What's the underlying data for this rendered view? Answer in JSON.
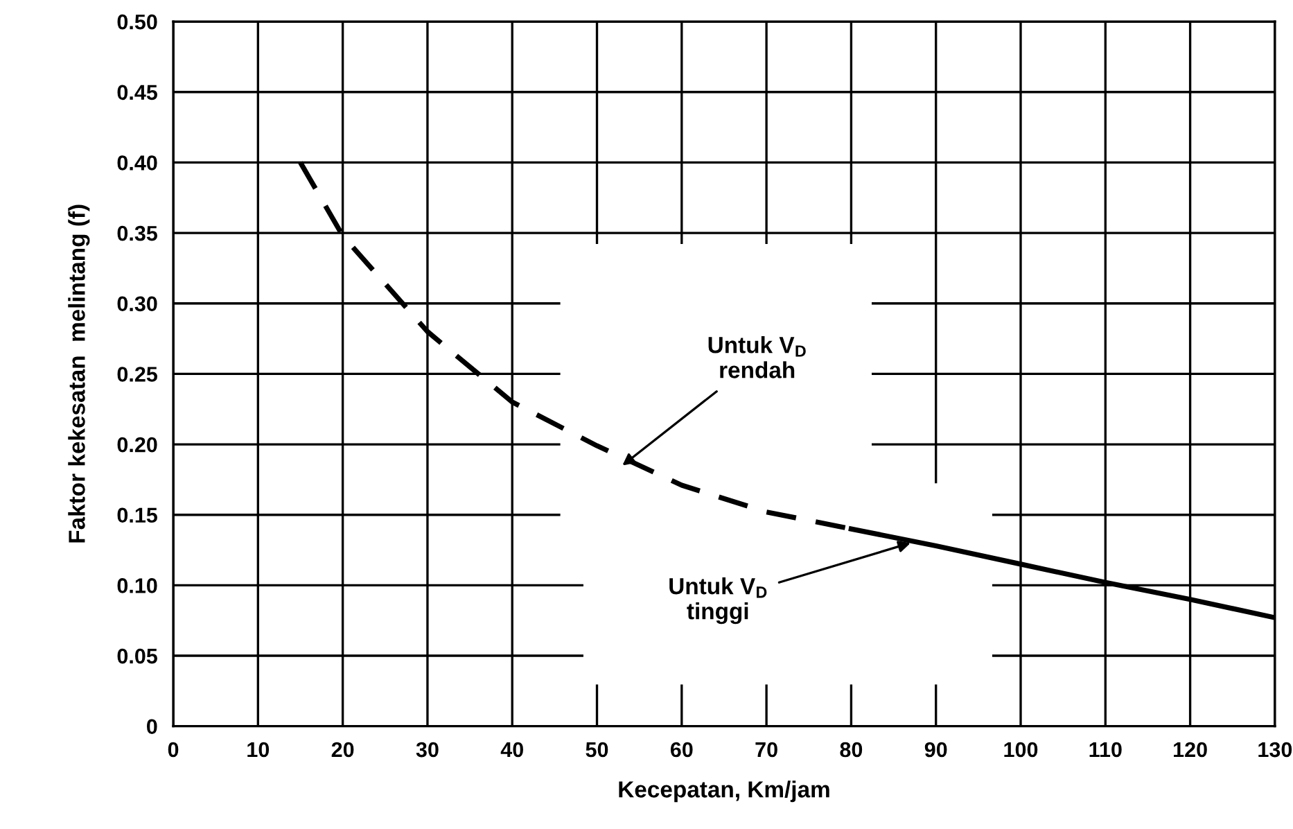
{
  "chart_data": {
    "type": "line",
    "xlabel": "Kecepatan, Km/jam",
    "ylabel": "Faktor kekesatan  melintang (f)",
    "series": [
      {
        "color": "#000000",
        "line_style": "dashed",
        "x": [
          15,
          20,
          30,
          40,
          50,
          60,
          70,
          80
        ],
        "values": [
          0.4,
          0.348,
          0.28,
          0.23,
          0.199,
          0.171,
          0.152,
          0.14
        ]
      },
      {
        "color": "#000000",
        "line_style": "solid",
        "x": [
          80,
          90,
          100,
          110,
          120,
          130
        ],
        "values": [
          0.14,
          0.128,
          0.115,
          0.102,
          0.09,
          0.077
        ]
      }
    ],
    "annotations": [
      {
        "text": "Untuk V$_{D}$\nrendah",
        "x": 53,
        "y": 0.185
      },
      {
        "text": "Untuk V$_{D}$\ntinggi",
        "x": 87,
        "y": 0.13
      }
    ],
    "xlim": [
      0,
      130
    ],
    "xticks": [
      0,
      10,
      20,
      30,
      40,
      50,
      60,
      70,
      80,
      90,
      100,
      110,
      120,
      130
    ],
    "ylim": [
      0,
      0.5
    ],
    "yticks": [
      {
        "value": 0,
        "label": "0"
      },
      {
        "value": 0.05,
        "label": "0.05"
      },
      {
        "value": 0.1,
        "label": "0.10"
      },
      {
        "value": 0.15,
        "label": "0.15"
      },
      {
        "value": 0.2,
        "label": "0.20"
      },
      {
        "value": 0.25,
        "label": "0.25"
      },
      {
        "value": 0.3,
        "label": "0.30"
      },
      {
        "value": 0.35,
        "label": "0.35"
      },
      {
        "value": 0.4,
        "label": "0.40"
      },
      {
        "value": 0.45,
        "label": "0.45"
      },
      {
        "value": 0.5,
        "label": "0.50"
      }
    ],
    "grid": true,
    "legend": false
  }
}
